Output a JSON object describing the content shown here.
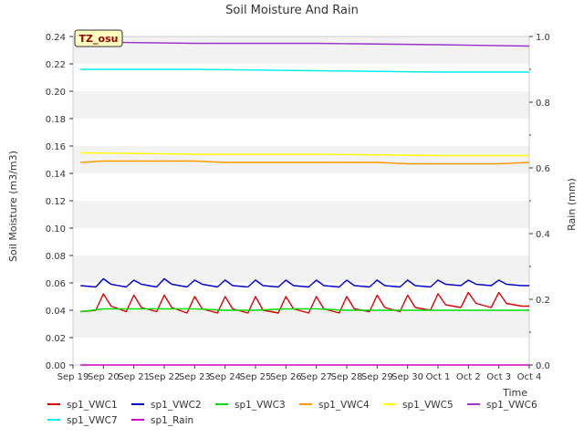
{
  "chart_data": {
    "type": "line",
    "title": "Soil Moisture And Rain",
    "ylabel": "Soil Moisture (m3/m3)",
    "y2label": "Rain (mm)",
    "xlabel": "Time",
    "badge": "TZ_osu",
    "x_ticks": [
      "Sep 19",
      "Sep 20",
      "Sep 21",
      "Sep 22",
      "Sep 23",
      "Sep 24",
      "Sep 25",
      "Sep 26",
      "Sep 27",
      "Sep 28",
      "Sep 29",
      "Sep 30",
      "Oct 1",
      "Oct 2",
      "Oct 3",
      "Oct 4"
    ],
    "x_start": "2019-09-19",
    "x_end": "2019-10-04",
    "y_ticks": [
      "0.00",
      "0.02",
      "0.04",
      "0.06",
      "0.08",
      "0.10",
      "0.12",
      "0.14",
      "0.16",
      "0.18",
      "0.20",
      "0.22",
      "0.24"
    ],
    "ylim": [
      0,
      0.24
    ],
    "y2_ticks": [
      "0.0",
      "0.2",
      "0.4",
      "0.6",
      "0.8",
      "1.0"
    ],
    "y2lim": [
      0,
      1.0
    ],
    "grid": "horizontal bands",
    "legend_position": "bottom",
    "series": [
      {
        "name": "sp1_VWC1",
        "color": "#dd0000",
        "axis": "left",
        "x": [
          "2019-09-19T06:00",
          "2019-09-19T18:00",
          "2019-09-20T00:00",
          "2019-09-20T06:00",
          "2019-09-20T18:00",
          "2019-09-21T00:00",
          "2019-09-21T06:00",
          "2019-09-21T18:00",
          "2019-09-22T00:00",
          "2019-09-22T06:00",
          "2019-09-22T18:00",
          "2019-09-23T00:00",
          "2019-09-23T06:00",
          "2019-09-23T18:00",
          "2019-09-24T00:00",
          "2019-09-24T06:00",
          "2019-09-24T18:00",
          "2019-09-25T00:00",
          "2019-09-25T06:00",
          "2019-09-25T18:00",
          "2019-09-26T00:00",
          "2019-09-26T06:00",
          "2019-09-26T18:00",
          "2019-09-27T00:00",
          "2019-09-27T06:00",
          "2019-09-27T18:00",
          "2019-09-28T00:00",
          "2019-09-28T06:00",
          "2019-09-28T18:00",
          "2019-09-29T00:00",
          "2019-09-29T06:00",
          "2019-09-29T18:00",
          "2019-09-30T00:00",
          "2019-09-30T06:00",
          "2019-09-30T18:00",
          "2019-10-01T00:00",
          "2019-10-01T06:00",
          "2019-10-01T18:00",
          "2019-10-02T00:00",
          "2019-10-02T06:00",
          "2019-10-02T18:00",
          "2019-10-03T00:00",
          "2019-10-03T06:00",
          "2019-10-03T18:00",
          "2019-10-04T00:00"
        ],
        "values": [
          0.039,
          0.04,
          0.052,
          0.043,
          0.039,
          0.051,
          0.042,
          0.039,
          0.051,
          0.042,
          0.038,
          0.05,
          0.041,
          0.038,
          0.05,
          0.041,
          0.038,
          0.05,
          0.04,
          0.038,
          0.05,
          0.041,
          0.038,
          0.05,
          0.041,
          0.038,
          0.05,
          0.041,
          0.039,
          0.051,
          0.042,
          0.039,
          0.051,
          0.042,
          0.04,
          0.052,
          0.044,
          0.042,
          0.053,
          0.045,
          0.042,
          0.053,
          0.045,
          0.043,
          0.043
        ]
      },
      {
        "name": "sp1_VWC2",
        "color": "#0000cc",
        "axis": "left",
        "x": [
          "2019-09-19T06:00",
          "2019-09-19T18:00",
          "2019-09-20T00:00",
          "2019-09-20T06:00",
          "2019-09-20T18:00",
          "2019-09-21T00:00",
          "2019-09-21T06:00",
          "2019-09-21T18:00",
          "2019-09-22T00:00",
          "2019-09-22T06:00",
          "2019-09-22T18:00",
          "2019-09-23T00:00",
          "2019-09-23T06:00",
          "2019-09-23T18:00",
          "2019-09-24T00:00",
          "2019-09-24T06:00",
          "2019-09-24T18:00",
          "2019-09-25T00:00",
          "2019-09-25T06:00",
          "2019-09-25T18:00",
          "2019-09-26T00:00",
          "2019-09-26T06:00",
          "2019-09-26T18:00",
          "2019-09-27T00:00",
          "2019-09-27T06:00",
          "2019-09-27T18:00",
          "2019-09-28T00:00",
          "2019-09-28T06:00",
          "2019-09-28T18:00",
          "2019-09-29T00:00",
          "2019-09-29T06:00",
          "2019-09-29T18:00",
          "2019-09-30T00:00",
          "2019-09-30T06:00",
          "2019-09-30T18:00",
          "2019-10-01T00:00",
          "2019-10-01T06:00",
          "2019-10-01T18:00",
          "2019-10-02T00:00",
          "2019-10-02T06:00",
          "2019-10-02T18:00",
          "2019-10-03T00:00",
          "2019-10-03T06:00",
          "2019-10-03T18:00",
          "2019-10-04T00:00"
        ],
        "values": [
          0.058,
          0.057,
          0.063,
          0.059,
          0.057,
          0.062,
          0.059,
          0.057,
          0.063,
          0.059,
          0.057,
          0.062,
          0.059,
          0.057,
          0.062,
          0.058,
          0.057,
          0.062,
          0.058,
          0.057,
          0.062,
          0.058,
          0.057,
          0.062,
          0.058,
          0.057,
          0.062,
          0.058,
          0.057,
          0.062,
          0.058,
          0.057,
          0.062,
          0.058,
          0.057,
          0.062,
          0.059,
          0.058,
          0.062,
          0.059,
          0.058,
          0.062,
          0.059,
          0.058,
          0.058
        ]
      },
      {
        "name": "sp1_VWC3",
        "color": "#00dd00",
        "axis": "left",
        "x": [
          "2019-09-19T06:00",
          "2019-09-20T00:00",
          "2019-09-21T00:00",
          "2019-09-22T00:00",
          "2019-09-23T00:00",
          "2019-09-24T00:00",
          "2019-09-25T00:00",
          "2019-09-26T00:00",
          "2019-09-27T00:00",
          "2019-09-28T00:00",
          "2019-09-29T00:00",
          "2019-09-30T00:00",
          "2019-10-01T00:00",
          "2019-10-02T00:00",
          "2019-10-03T00:00",
          "2019-10-04T00:00"
        ],
        "values": [
          0.039,
          0.041,
          0.041,
          0.041,
          0.041,
          0.04,
          0.04,
          0.041,
          0.041,
          0.04,
          0.04,
          0.04,
          0.04,
          0.04,
          0.04,
          0.04
        ]
      },
      {
        "name": "sp1_VWC4",
        "color": "#ff9900",
        "axis": "left",
        "x": [
          "2019-09-19T06:00",
          "2019-09-20T00:00",
          "2019-09-21T00:00",
          "2019-09-22T00:00",
          "2019-09-23T00:00",
          "2019-09-24T00:00",
          "2019-09-25T00:00",
          "2019-09-26T00:00",
          "2019-09-27T00:00",
          "2019-09-28T00:00",
          "2019-09-29T00:00",
          "2019-09-30T00:00",
          "2019-10-01T00:00",
          "2019-10-02T00:00",
          "2019-10-03T00:00",
          "2019-10-04T00:00"
        ],
        "values": [
          0.148,
          0.149,
          0.149,
          0.149,
          0.149,
          0.148,
          0.148,
          0.148,
          0.148,
          0.148,
          0.148,
          0.147,
          0.147,
          0.147,
          0.147,
          0.148
        ]
      },
      {
        "name": "sp1_VWC5",
        "color": "#ffff00",
        "axis": "left",
        "x": [
          "2019-09-19T06:00",
          "2019-09-23T00:00",
          "2019-09-27T00:00",
          "2019-10-01T00:00",
          "2019-10-04T00:00"
        ],
        "values": [
          0.155,
          0.154,
          0.154,
          0.153,
          0.153
        ]
      },
      {
        "name": "sp1_VWC6",
        "color": "#9933cc",
        "axis": "left",
        "x": [
          "2019-09-19T06:00",
          "2019-09-23T00:00",
          "2019-09-27T00:00",
          "2019-10-01T00:00",
          "2019-10-04T00:00"
        ],
        "values": [
          0.236,
          0.235,
          0.235,
          0.234,
          0.233
        ]
      },
      {
        "name": "sp1_VWC7",
        "color": "#00eeee",
        "axis": "left",
        "x": [
          "2019-09-19T06:00",
          "2019-09-23T00:00",
          "2019-09-27T00:00",
          "2019-10-01T00:00",
          "2019-10-04T00:00"
        ],
        "values": [
          0.216,
          0.216,
          0.215,
          0.214,
          0.214
        ]
      },
      {
        "name": "sp1_Rain",
        "color": "#cc00cc",
        "axis": "right",
        "x": [
          "2019-09-19T06:00",
          "2019-10-04T00:00"
        ],
        "values": [
          0.0,
          0.0
        ]
      }
    ]
  }
}
